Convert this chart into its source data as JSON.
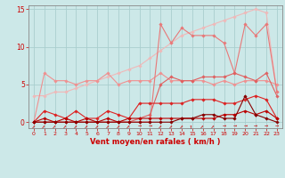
{
  "x": [
    0,
    1,
    2,
    3,
    4,
    5,
    6,
    7,
    8,
    9,
    10,
    11,
    12,
    13,
    14,
    15,
    16,
    17,
    18,
    19,
    20,
    21,
    22,
    23
  ],
  "series": [
    {
      "name": "diagonal_very_light",
      "color": "#f0b8b8",
      "linewidth": 0.8,
      "marker": "D",
      "markersize": 1.8,
      "y": [
        3.5,
        3.5,
        4.0,
        4.0,
        4.5,
        5.0,
        5.5,
        6.0,
        6.5,
        7.0,
        7.5,
        8.5,
        9.5,
        10.5,
        11.5,
        12.0,
        12.5,
        13.0,
        13.5,
        14.0,
        14.5,
        15.0,
        14.5,
        4.0
      ]
    },
    {
      "name": "flat_light_salmon",
      "color": "#f09090",
      "linewidth": 0.8,
      "marker": "D",
      "markersize": 1.8,
      "y": [
        0.0,
        6.5,
        5.5,
        5.5,
        5.0,
        5.5,
        5.5,
        6.5,
        5.0,
        5.5,
        5.5,
        5.5,
        6.5,
        5.5,
        5.5,
        5.5,
        5.5,
        5.0,
        5.5,
        5.0,
        5.5,
        5.5,
        5.5,
        5.0
      ]
    },
    {
      "name": "spike_light",
      "color": "#e87878",
      "linewidth": 0.8,
      "marker": "D",
      "markersize": 1.8,
      "y": [
        0.0,
        0.0,
        0.0,
        0.0,
        0.0,
        0.0,
        0.0,
        0.0,
        0.0,
        0.0,
        0.0,
        0.0,
        13.0,
        10.5,
        12.5,
        11.5,
        11.5,
        11.5,
        10.5,
        6.5,
        13.0,
        11.5,
        13.0,
        4.0
      ]
    },
    {
      "name": "step_medium",
      "color": "#e06060",
      "linewidth": 0.8,
      "marker": "D",
      "markersize": 1.8,
      "y": [
        0.0,
        0.0,
        0.0,
        0.0,
        0.0,
        0.0,
        0.0,
        0.0,
        0.0,
        0.0,
        0.5,
        1.0,
        5.0,
        6.0,
        5.5,
        5.5,
        6.0,
        6.0,
        6.0,
        6.5,
        6.0,
        5.5,
        6.5,
        3.5
      ]
    },
    {
      "name": "low_red",
      "color": "#dd2222",
      "linewidth": 0.8,
      "marker": "D",
      "markersize": 1.8,
      "y": [
        0.0,
        1.5,
        1.0,
        0.5,
        1.5,
        0.5,
        0.5,
        1.5,
        1.0,
        0.5,
        2.5,
        2.5,
        2.5,
        2.5,
        2.5,
        3.0,
        3.0,
        3.0,
        2.5,
        2.5,
        3.0,
        3.5,
        3.0,
        0.5
      ]
    },
    {
      "name": "near_zero_darkred",
      "color": "#bb0000",
      "linewidth": 0.8,
      "marker": "D",
      "markersize": 1.8,
      "y": [
        0.0,
        0.5,
        0.0,
        0.5,
        0.0,
        0.5,
        0.0,
        0.5,
        0.0,
        0.5,
        0.5,
        0.5,
        0.5,
        0.5,
        0.5,
        0.5,
        0.5,
        0.5,
        1.0,
        1.0,
        1.5,
        1.0,
        1.5,
        0.5
      ]
    },
    {
      "name": "near_zero_vdark",
      "color": "#880000",
      "linewidth": 0.8,
      "marker": "D",
      "markersize": 1.8,
      "y": [
        0.0,
        0.0,
        0.0,
        0.0,
        0.0,
        0.0,
        0.0,
        0.0,
        0.0,
        0.0,
        0.0,
        0.0,
        0.0,
        0.0,
        0.5,
        0.5,
        1.0,
        1.0,
        0.5,
        0.5,
        3.5,
        1.0,
        0.5,
        0.0
      ]
    }
  ],
  "xlim": [
    -0.5,
    23.5
  ],
  "ylim": [
    -0.8,
    15.5
  ],
  "yticks": [
    0,
    5,
    10,
    15
  ],
  "xticks": [
    0,
    1,
    2,
    3,
    4,
    5,
    6,
    7,
    8,
    9,
    10,
    11,
    12,
    13,
    14,
    15,
    16,
    17,
    18,
    19,
    20,
    21,
    22,
    23
  ],
  "xlabel": "Vent moyen/en rafales ( km/h )",
  "background_color": "#cce8e8",
  "grid_color": "#aacece",
  "tick_color": "#cc0000",
  "label_color": "#cc0000",
  "spine_color": "#888888"
}
